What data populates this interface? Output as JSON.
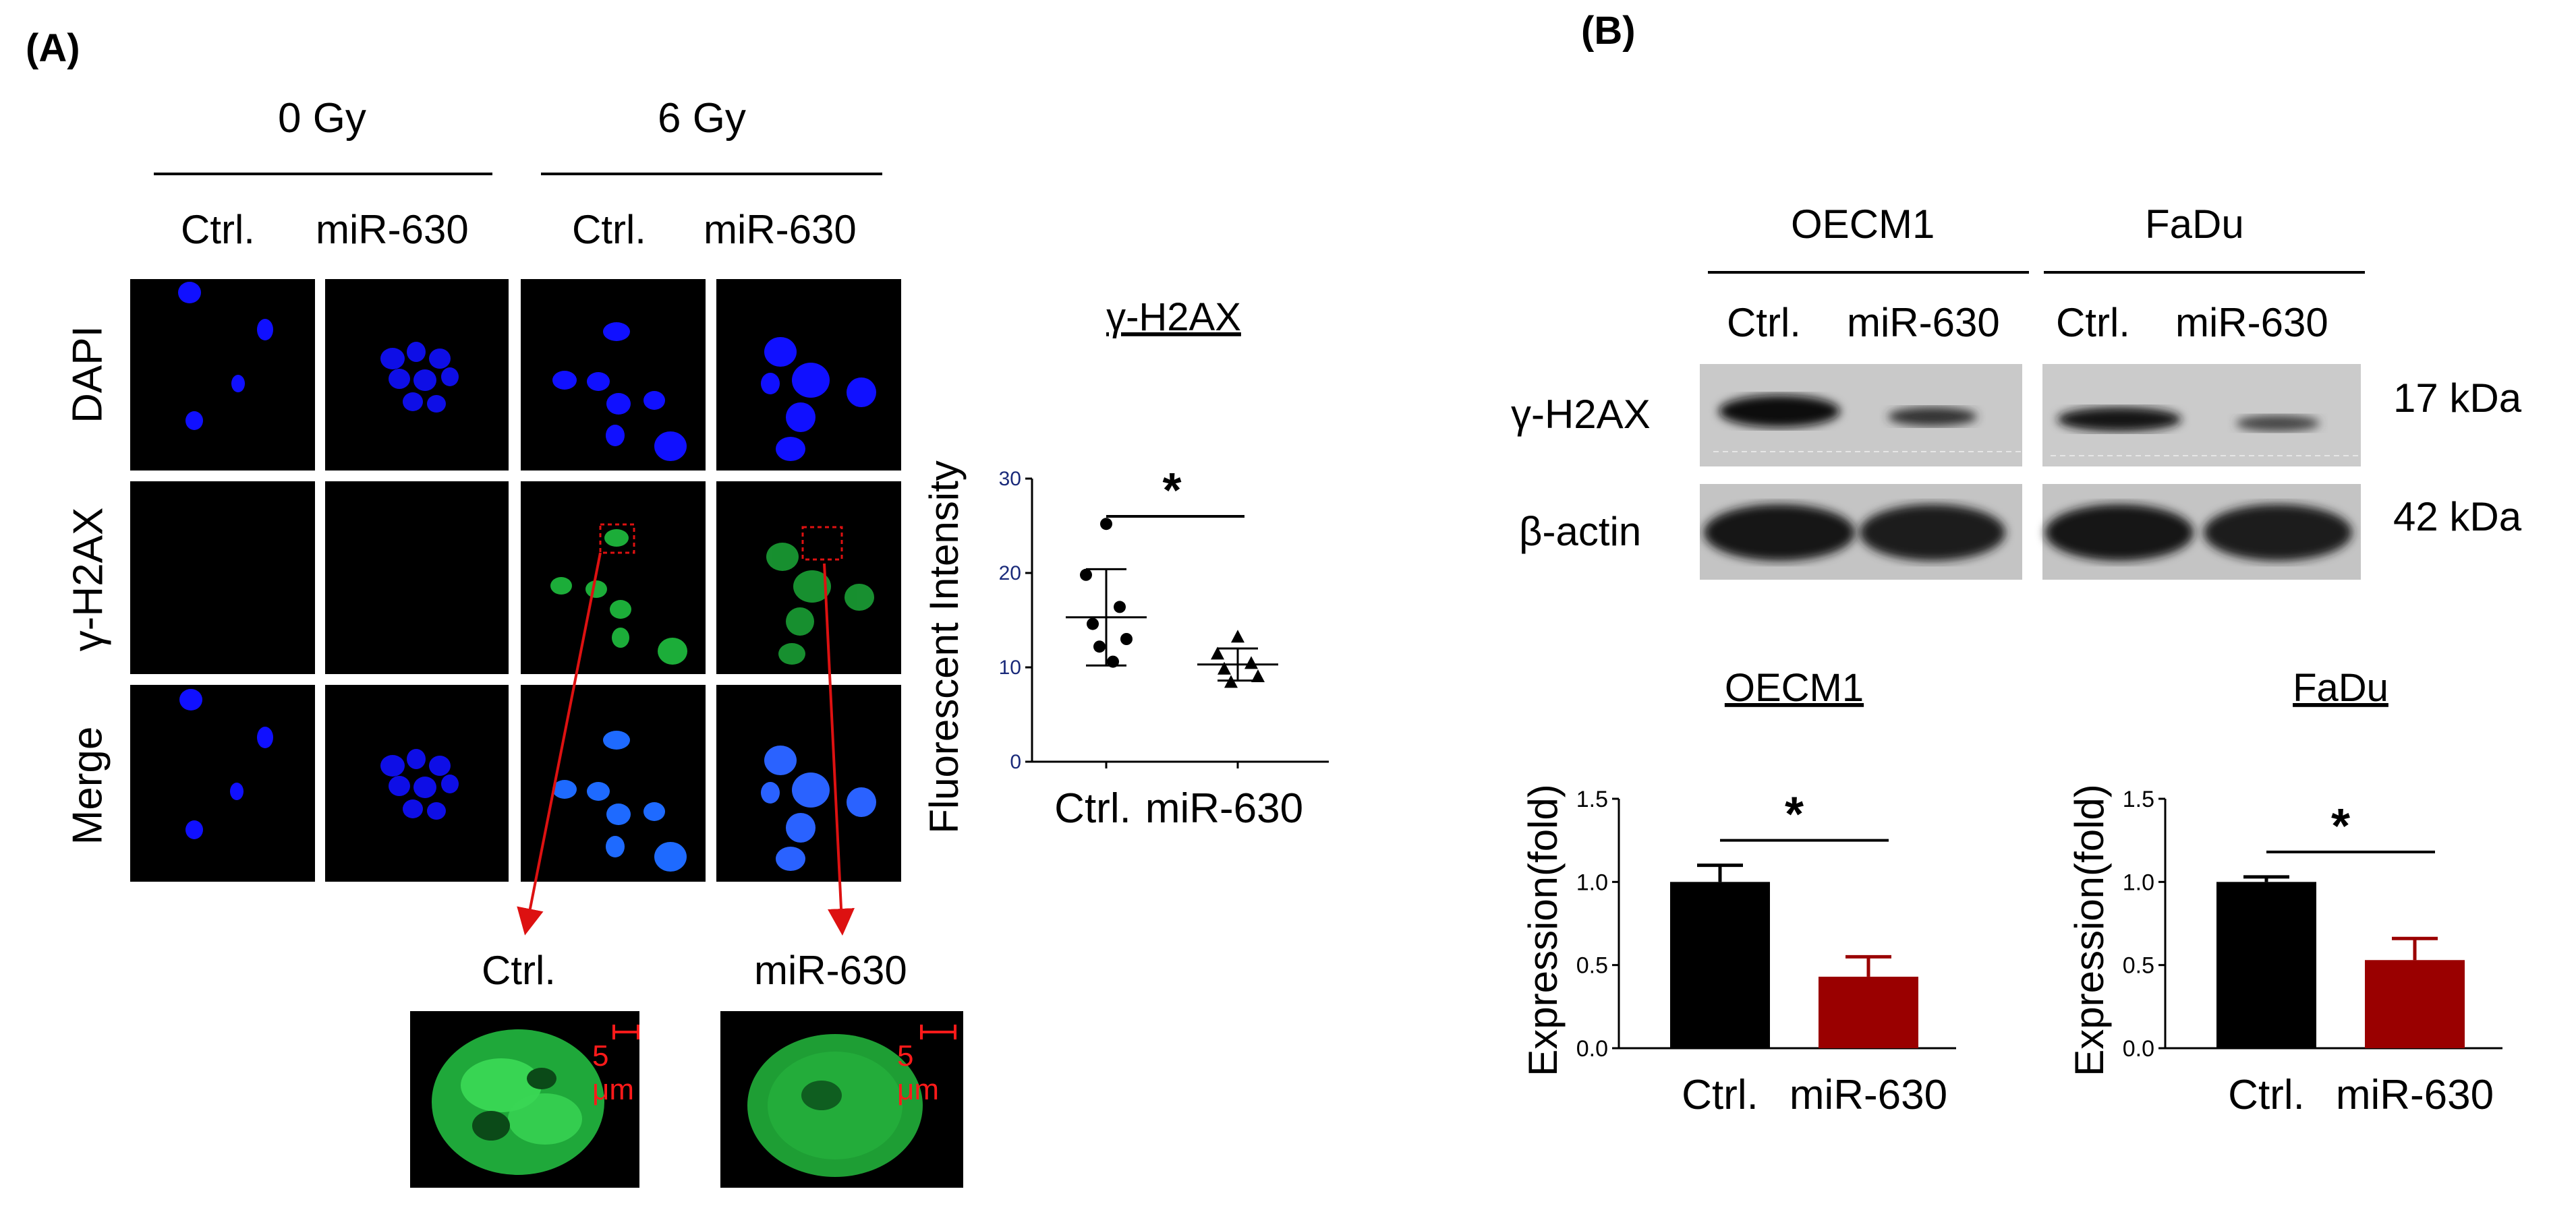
{
  "panelA": {
    "label": "(A)",
    "dose_headers": [
      "0 Gy",
      "6 Gy"
    ],
    "condition_labels": [
      "Ctrl.",
      "miR-630",
      "Ctrl.",
      "miR-630"
    ],
    "row_labels": [
      "DAPI",
      "γ-H2AX",
      "Merge"
    ],
    "zoom_labels": [
      "Ctrl.",
      "miR-630"
    ],
    "scale_bar_label": "5 μm",
    "colors": {
      "dapi": "#1010ff",
      "h2ax": "#22cc44",
      "arrow": "#dd1111"
    }
  },
  "panelB": {
    "label": "(B)",
    "cell_lines": [
      "OECM1",
      "FaDu"
    ],
    "blot_conditions": [
      "Ctrl.",
      "miR-630",
      "Ctrl.",
      "miR-630"
    ],
    "blot_rows": [
      "γ-H2AX",
      "β-actin"
    ],
    "mw_labels": [
      "17 kDa",
      "42 kDa"
    ]
  },
  "chart_data": [
    {
      "type": "scatter",
      "title": "γ-H2AX",
      "xlabel": "",
      "ylabel": "Fluorescent Intensity",
      "categories": [
        "Ctrl.",
        "miR-630"
      ],
      "ylim": [
        0,
        30
      ],
      "yticks": [
        "0",
        "10",
        "20",
        "30"
      ],
      "significance": "*",
      "series": [
        {
          "category": "Ctrl.",
          "marker": "circle",
          "values": [
            25.2,
            19.8,
            16.4,
            14.6,
            13.0,
            12.2,
            10.6
          ],
          "mean": 15.3,
          "sd": 5.1
        },
        {
          "category": "miR-630",
          "marker": "triangle",
          "values": [
            13.2,
            11.4,
            10.4,
            9.8,
            9.0,
            8.4
          ],
          "mean": 10.3,
          "sd": 1.7
        }
      ]
    },
    {
      "type": "bar",
      "title": "OECM1",
      "xlabel": "",
      "ylabel": "Expression(fold)",
      "categories": [
        "Ctrl.",
        "miR-630"
      ],
      "values": [
        1.0,
        0.43
      ],
      "errors": [
        0.1,
        0.12
      ],
      "colors": [
        "#000000",
        "#9a0000"
      ],
      "ylim": [
        0,
        1.5
      ],
      "yticks": [
        "0.0",
        "0.5",
        "1.0",
        "1.5"
      ],
      "significance": "*"
    },
    {
      "type": "bar",
      "title": "FaDu",
      "xlabel": "",
      "ylabel": "Expression(fold)",
      "categories": [
        "Ctrl.",
        "miR-630"
      ],
      "values": [
        1.0,
        0.53
      ],
      "errors": [
        0.03,
        0.13
      ],
      "colors": [
        "#000000",
        "#9a0000"
      ],
      "ylim": [
        0,
        1.5
      ],
      "yticks": [
        "0.0",
        "0.5",
        "1.0",
        "1.5"
      ],
      "significance": "*"
    }
  ]
}
